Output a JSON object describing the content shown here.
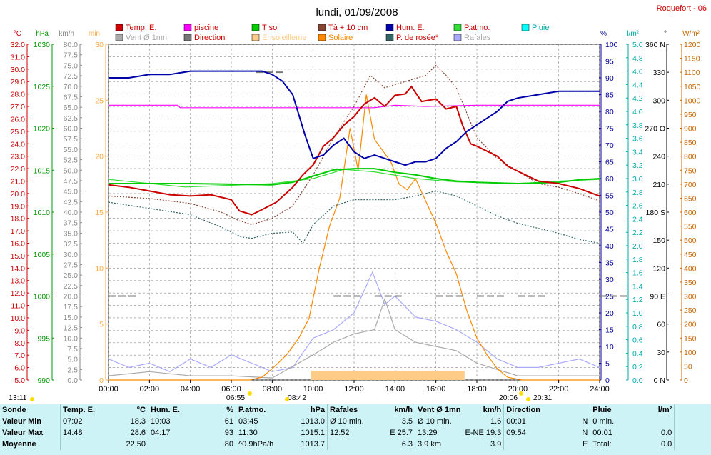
{
  "title": "lundi, 01/09/2008",
  "station": "Roquefort - 06",
  "legend": [
    {
      "label": "Temp. E.",
      "color": "#cc0000"
    },
    {
      "label": "piscine",
      "color": "#ff00ff"
    },
    {
      "label": "T sol",
      "color": "#00cc00"
    },
    {
      "label": "Tà + 10 cm",
      "color": "#884433"
    },
    {
      "label": "Hum. E.",
      "color": "#0000aa"
    },
    {
      "label": "P.atmo.",
      "color": "#33dd33"
    },
    {
      "label": "Pluie",
      "color": "#00ffff"
    },
    {
      "label": "Vent Ø 1mn",
      "color": "#aaaaaa"
    },
    {
      "label": "Direction",
      "color": "#777777"
    },
    {
      "label": "Ensoleilleme",
      "color": "#ffcc88"
    },
    {
      "label": "Solaire",
      "color": "#ff8800"
    },
    {
      "label": "P. de rosée*",
      "color": "#336666"
    },
    {
      "label": "Rafales",
      "color": "#aaaaff"
    }
  ],
  "unit_labels": {
    "c": "°C",
    "hpa": "hPa",
    "kmh": "km/h",
    "min": "min",
    "pct": "%",
    "lm2": "l/m²",
    "deg": "°",
    "wm2": "W/m²"
  },
  "axes": {
    "celsius": {
      "min": 5,
      "max": 32,
      "step": 1,
      "color": "#cc0000"
    },
    "hpa": {
      "min": 990,
      "max": 1030,
      "step": 5,
      "color": "#009900"
    },
    "kmh": {
      "min": 0,
      "max": 80,
      "step": 2.5,
      "color": "#888888"
    },
    "min": {
      "min": 0,
      "max": 30,
      "step": 5,
      "color": "#ffaa44"
    },
    "pct": {
      "min": 0,
      "max": 100,
      "step": 5,
      "color": "#000099"
    },
    "lm2": {
      "min": 0,
      "max": 5,
      "step": 0.2,
      "color": "#00aaaa"
    },
    "deg": {
      "labels": [
        "0 N",
        "30",
        "60",
        "90 E",
        "120",
        "150",
        "180 S",
        "210",
        "240",
        "270 O",
        "300",
        "330",
        "360 N"
      ],
      "color": "#000000"
    },
    "wm2": {
      "min": 0,
      "max": 1200,
      "step": 50,
      "color": "#cc6600"
    }
  },
  "x_ticks": [
    "00:00",
    "02:00",
    "04:00",
    "06:00",
    "08:00",
    "10:00",
    "12:00",
    "14:00",
    "16:00",
    "18:00",
    "20:00",
    "22:00",
    "24:00"
  ],
  "sun_markers": {
    "moonrise": "13:11",
    "sunrise": "06:55",
    "sun_morning": "08:42",
    "sunset": "20:06",
    "sun_evening": "20:31"
  },
  "chart_data": {
    "type": "line",
    "x_unit": "hour",
    "series": [
      {
        "name": "Temp. E.",
        "axis": "celsius",
        "points": [
          [
            0,
            20.7
          ],
          [
            1,
            20.5
          ],
          [
            2,
            20.2
          ],
          [
            3,
            19.9
          ],
          [
            4,
            19.8
          ],
          [
            5,
            19.9
          ],
          [
            6,
            19.5
          ],
          [
            6.4,
            18.6
          ],
          [
            7.0,
            18.3
          ],
          [
            7.5,
            18.7
          ],
          [
            8.2,
            19.3
          ],
          [
            9,
            20.5
          ],
          [
            9.5,
            21.5
          ],
          [
            10,
            22.3
          ],
          [
            10.5,
            23.8
          ],
          [
            11,
            24.5
          ],
          [
            11.5,
            25.5
          ],
          [
            12,
            26.2
          ],
          [
            12.5,
            27.2
          ],
          [
            13,
            27.7
          ],
          [
            13.5,
            27.0
          ],
          [
            14,
            27.9
          ],
          [
            14.5,
            28.0
          ],
          [
            14.8,
            28.6
          ],
          [
            15.3,
            27.4
          ],
          [
            16,
            27.6
          ],
          [
            16.5,
            26.8
          ],
          [
            17,
            27.0
          ],
          [
            17.3,
            25.5
          ],
          [
            17.7,
            24.0
          ],
          [
            18,
            23.8
          ],
          [
            19,
            23.0
          ],
          [
            19.5,
            22.2
          ],
          [
            20,
            21.8
          ],
          [
            21,
            21.0
          ],
          [
            22,
            20.8
          ],
          [
            23,
            20.4
          ],
          [
            24,
            19.8
          ]
        ]
      },
      {
        "name": "piscine",
        "axis": "celsius",
        "points": [
          [
            0,
            27.1
          ],
          [
            3.4,
            27.1
          ],
          [
            3.5,
            26.9
          ],
          [
            8.5,
            26.9
          ],
          [
            13,
            26.9
          ],
          [
            14,
            27.1
          ],
          [
            15.5,
            27.0
          ],
          [
            18,
            27.1
          ],
          [
            24,
            27.1
          ]
        ]
      },
      {
        "name": "T sol",
        "axis": "celsius",
        "points": [
          [
            0,
            20.8
          ],
          [
            4,
            20.8
          ],
          [
            8,
            20.7
          ],
          [
            9,
            20.9
          ],
          [
            10,
            21.4
          ],
          [
            11,
            21.9
          ],
          [
            12,
            22.0
          ],
          [
            13,
            22.0
          ],
          [
            14,
            21.7
          ],
          [
            15,
            21.5
          ],
          [
            16,
            21.2
          ],
          [
            17,
            21.0
          ],
          [
            18,
            20.9
          ],
          [
            20,
            20.8
          ],
          [
            22,
            20.9
          ],
          [
            23,
            21.1
          ],
          [
            24,
            21.2
          ]
        ]
      },
      {
        "name": "Tà + 10 cm",
        "axis": "celsius",
        "points": [
          [
            0,
            19.8
          ],
          [
            2,
            19.6
          ],
          [
            4,
            19.2
          ],
          [
            5.5,
            18.5
          ],
          [
            6.4,
            17.8
          ],
          [
            7.0,
            17.5
          ],
          [
            8,
            18.0
          ],
          [
            9,
            19.0
          ],
          [
            10,
            21.5
          ],
          [
            11,
            24.5
          ],
          [
            12,
            27.0
          ],
          [
            12.8,
            29.5
          ],
          [
            13.5,
            28.5
          ],
          [
            14.5,
            29.0
          ],
          [
            15.5,
            29.5
          ],
          [
            16,
            30.3
          ],
          [
            16.5,
            29.5
          ],
          [
            17,
            28.5
          ],
          [
            17.5,
            26.5
          ],
          [
            18,
            24.5
          ],
          [
            19,
            22.8
          ],
          [
            20,
            21.8
          ],
          [
            21,
            20.8
          ],
          [
            22,
            20.5
          ],
          [
            23,
            20.0
          ],
          [
            24,
            19.4
          ]
        ]
      },
      {
        "name": "Hum. E.",
        "axis": "pct",
        "points": [
          [
            0,
            90
          ],
          [
            1,
            90
          ],
          [
            2,
            91
          ],
          [
            3,
            91
          ],
          [
            4,
            92
          ],
          [
            5,
            92
          ],
          [
            6,
            92
          ],
          [
            7,
            92
          ],
          [
            7.5,
            92
          ],
          [
            8,
            91
          ],
          [
            8.5,
            89
          ],
          [
            9,
            85
          ],
          [
            9.3,
            79
          ],
          [
            9.6,
            73
          ],
          [
            10,
            66
          ],
          [
            10.5,
            67
          ],
          [
            11,
            70
          ],
          [
            11.5,
            72
          ],
          [
            12,
            68
          ],
          [
            12.5,
            66
          ],
          [
            13,
            67
          ],
          [
            13.5,
            66
          ],
          [
            14,
            65
          ],
          [
            14.5,
            64
          ],
          [
            15,
            65
          ],
          [
            15.5,
            65
          ],
          [
            16,
            66
          ],
          [
            16.5,
            69
          ],
          [
            17,
            71
          ],
          [
            17.5,
            74
          ],
          [
            18,
            76
          ],
          [
            18.5,
            78
          ],
          [
            19,
            80
          ],
          [
            19.5,
            83
          ],
          [
            20,
            84
          ],
          [
            21,
            85
          ],
          [
            22,
            86
          ],
          [
            23,
            86
          ],
          [
            24,
            86
          ]
        ]
      },
      {
        "name": "P.atmo.",
        "axis": "hpa",
        "points": [
          [
            0,
            1013.9
          ],
          [
            3.75,
            1013.0
          ],
          [
            6,
            1013.2
          ],
          [
            8,
            1013.4
          ],
          [
            10,
            1014.0
          ],
          [
            11.5,
            1015.1
          ],
          [
            13,
            1014.8
          ],
          [
            15,
            1014.0
          ],
          [
            17,
            1013.6
          ],
          [
            20,
            1013.4
          ],
          [
            22,
            1013.7
          ],
          [
            24,
            1013.9
          ]
        ]
      },
      {
        "name": "P. de rosée*",
        "axis": "celsius",
        "points": [
          [
            0,
            19.3
          ],
          [
            2,
            18.8
          ],
          [
            4,
            18.3
          ],
          [
            5.5,
            17.3
          ],
          [
            6.5,
            16.5
          ],
          [
            7.0,
            16.4
          ],
          [
            8,
            16.8
          ],
          [
            9,
            16.9
          ],
          [
            9.5,
            16.0
          ],
          [
            10,
            17.5
          ],
          [
            11,
            19.0
          ],
          [
            12,
            19.5
          ],
          [
            13,
            19.5
          ],
          [
            14,
            19.5
          ],
          [
            15,
            19.8
          ],
          [
            16,
            20.2
          ],
          [
            17,
            19.8
          ],
          [
            18,
            19.0
          ],
          [
            19,
            18.2
          ],
          [
            20,
            17.6
          ],
          [
            21,
            17.2
          ],
          [
            22,
            16.8
          ],
          [
            23,
            16.3
          ],
          [
            24,
            16.0
          ]
        ]
      },
      {
        "name": "Rafales",
        "axis": "kmh",
        "points": [
          [
            0,
            5
          ],
          [
            1,
            3
          ],
          [
            2,
            4
          ],
          [
            3,
            2
          ],
          [
            4,
            5
          ],
          [
            5,
            3
          ],
          [
            6,
            6
          ],
          [
            7,
            4
          ],
          [
            8,
            2
          ],
          [
            9,
            3
          ],
          [
            10,
            10
          ],
          [
            11,
            12
          ],
          [
            12,
            16
          ],
          [
            12.9,
            25.7
          ],
          [
            13.5,
            18
          ],
          [
            14,
            20
          ],
          [
            15,
            15
          ],
          [
            16,
            14
          ],
          [
            17,
            12
          ],
          [
            18,
            9
          ],
          [
            19,
            5
          ],
          [
            20,
            3
          ],
          [
            21,
            3
          ],
          [
            22,
            4
          ],
          [
            23,
            5
          ],
          [
            24,
            3
          ]
        ]
      },
      {
        "name": "Vent Ø 1mn",
        "axis": "kmh",
        "points": [
          [
            0,
            1
          ],
          [
            2,
            2
          ],
          [
            4,
            1
          ],
          [
            6,
            1
          ],
          [
            8,
            0.5
          ],
          [
            10,
            6
          ],
          [
            11,
            9
          ],
          [
            12,
            11
          ],
          [
            13,
            12
          ],
          [
            13.5,
            19.3
          ],
          [
            14,
            12
          ],
          [
            15,
            9
          ],
          [
            16,
            8
          ],
          [
            17,
            7
          ],
          [
            18,
            4
          ],
          [
            20,
            1
          ],
          [
            22,
            1
          ],
          [
            24,
            1
          ]
        ]
      },
      {
        "name": "Solaire",
        "axis": "wm2",
        "points": [
          [
            0,
            0
          ],
          [
            6.9,
            0
          ],
          [
            7.5,
            10
          ],
          [
            8.0,
            40
          ],
          [
            8.7,
            90
          ],
          [
            9.3,
            150
          ],
          [
            9.8,
            220
          ],
          [
            10.3,
            400
          ],
          [
            10.8,
            550
          ],
          [
            11.3,
            650
          ],
          [
            11.8,
            900
          ],
          [
            12.2,
            750
          ],
          [
            12.6,
            1020
          ],
          [
            13,
            860
          ],
          [
            13.4,
            820
          ],
          [
            13.8,
            780
          ],
          [
            14.2,
            700
          ],
          [
            14.6,
            680
          ],
          [
            15.0,
            720
          ],
          [
            15.5,
            640
          ],
          [
            16,
            560
          ],
          [
            16.5,
            460
          ],
          [
            17,
            380
          ],
          [
            17.5,
            250
          ],
          [
            18,
            150
          ],
          [
            18.5,
            90
          ],
          [
            19,
            40
          ],
          [
            19.5,
            10
          ],
          [
            20.2,
            0
          ],
          [
            24,
            0
          ]
        ]
      },
      {
        "name": "Direction",
        "axis": "deg",
        "points": [
          [
            0,
            90
          ],
          [
            7.2,
            330
          ],
          [
            11,
            90
          ],
          [
            13,
            90
          ],
          [
            16,
            90
          ],
          [
            18,
            90
          ],
          [
            20,
            90
          ],
          [
            24,
            90
          ]
        ]
      }
    ],
    "sunshine_band": {
      "axis": "min",
      "from_hour": 9.9,
      "to_hour": 17.4,
      "value": 0.8
    }
  },
  "stats": {
    "headers": {
      "sonde": "Sonde",
      "temp": "Temp. E.",
      "temp_u": "°C",
      "hum": "Hum. E.",
      "hum_u": "%",
      "patmo": "P.atmo.",
      "patmo_u": "hPa",
      "raf": "Rafales",
      "raf_u": "km/h",
      "vent": "Vent Ø 1mn",
      "vent_u": "km/h",
      "dir": "Direction",
      "pluie": "Pluie",
      "pluie_u": "l/m²"
    },
    "min": {
      "label": "Valeur Min",
      "temp_t": "07:02",
      "temp_v": "18.3",
      "hum_t": "10:03",
      "hum_v": "61",
      "patmo_t": "03:45",
      "patmo_v": "1013.0",
      "raf_t": "Ø 10 min.",
      "raf_v": "3.5",
      "vent_t": "Ø 10 min.",
      "vent_v": "1.6",
      "dir_t": "00:01",
      "dir_v": "N",
      "pluie_t": "0 min.",
      "pluie_v": ""
    },
    "max": {
      "label": "Valeur Max",
      "temp_t": "14:48",
      "temp_v": "28.6",
      "hum_t": "04:17",
      "hum_v": "93",
      "patmo_t": "11:30",
      "patmo_v": "1015.1",
      "raf_t": "12:52",
      "raf_v": "E 25.7",
      "vent_t": "13:29",
      "vent_v": "E-NE 19.3",
      "dir_t": "09:54",
      "dir_v": "N",
      "pluie_t": "00:01",
      "pluie_v": "0.0"
    },
    "avg": {
      "label": "Moyenne",
      "temp_t": "",
      "temp_v": "22.50",
      "hum_t": "",
      "hum_v": "80",
      "patmo_t": "^0.9hPa/h",
      "patmo_v": "1013.7",
      "raf_t": "",
      "raf_v": "6.3",
      "vent_t": "3.9 km",
      "vent_v": "3.9",
      "dir_t": "",
      "dir_v": "E",
      "pluie_t": "Total:",
      "pluie_v": "0.0"
    }
  }
}
